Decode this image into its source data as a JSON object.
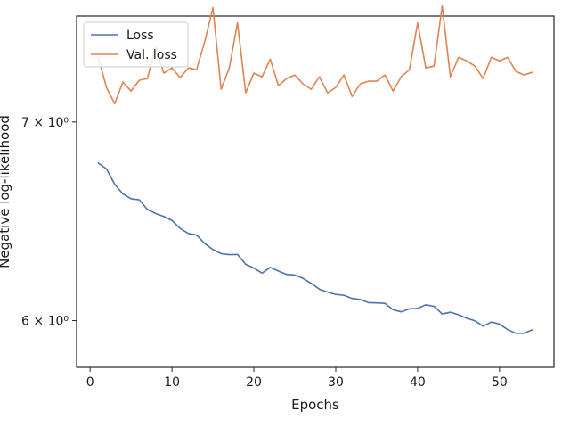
{
  "chart_data": {
    "type": "line",
    "title": "",
    "xlabel": "Epochs",
    "ylabel": "Negative log-likelihood",
    "xlim": [
      -1.65,
      56.65
    ],
    "ylim": [
      5.786,
      7.6
    ],
    "yscale": "log",
    "grid": false,
    "legend": {
      "position": "top-left",
      "entries": [
        "Loss",
        "Val. loss"
      ]
    },
    "xticks": [
      {
        "value": 0,
        "label": "0"
      },
      {
        "value": 10,
        "label": "10"
      },
      {
        "value": 20,
        "label": "20"
      },
      {
        "value": 30,
        "label": "30"
      },
      {
        "value": 40,
        "label": "40"
      },
      {
        "value": 50,
        "label": "50"
      }
    ],
    "yticks": [
      {
        "value": 6,
        "label": "6 × 10⁰"
      },
      {
        "value": 7,
        "label": "7 × 10⁰"
      }
    ],
    "x": [
      1,
      2,
      3,
      4,
      5,
      6,
      7,
      8,
      9,
      10,
      11,
      12,
      13,
      14,
      15,
      16,
      17,
      18,
      19,
      20,
      21,
      22,
      23,
      24,
      25,
      26,
      27,
      28,
      29,
      30,
      31,
      32,
      33,
      34,
      35,
      36,
      37,
      38,
      39,
      40,
      41,
      42,
      43,
      44,
      45,
      46,
      47,
      48,
      49,
      50,
      51,
      52,
      53,
      54
    ],
    "series": [
      {
        "name": "Loss",
        "color": "#4c72b0",
        "values": [
          6.78,
          6.75,
          6.67,
          6.62,
          6.595,
          6.59,
          6.54,
          6.52,
          6.505,
          6.485,
          6.445,
          6.42,
          6.412,
          6.37,
          6.34,
          6.32,
          6.315,
          6.316,
          6.268,
          6.25,
          6.225,
          6.253,
          6.235,
          6.219,
          6.216,
          6.2,
          6.176,
          6.148,
          6.134,
          6.123,
          6.119,
          6.104,
          6.099,
          6.084,
          6.083,
          6.081,
          6.051,
          6.041,
          6.055,
          6.057,
          6.074,
          6.067,
          6.031,
          6.039,
          6.027,
          6.011,
          5.999,
          5.974,
          5.993,
          5.984,
          5.958,
          5.941,
          5.941,
          5.957
        ]
      },
      {
        "name": "Val. loss",
        "color": "#dd8452",
        "values": [
          7.36,
          7.19,
          7.1,
          7.22,
          7.17,
          7.23,
          7.24,
          7.42,
          7.27,
          7.3,
          7.245,
          7.3,
          7.29,
          7.45,
          7.65,
          7.18,
          7.3,
          7.56,
          7.16,
          7.27,
          7.25,
          7.35,
          7.2,
          7.24,
          7.26,
          7.21,
          7.18,
          7.25,
          7.16,
          7.19,
          7.26,
          7.14,
          7.21,
          7.225,
          7.225,
          7.26,
          7.17,
          7.25,
          7.29,
          7.56,
          7.3,
          7.31,
          7.66,
          7.25,
          7.36,
          7.34,
          7.31,
          7.24,
          7.36,
          7.34,
          7.36,
          7.28,
          7.26,
          7.275
        ]
      }
    ]
  }
}
